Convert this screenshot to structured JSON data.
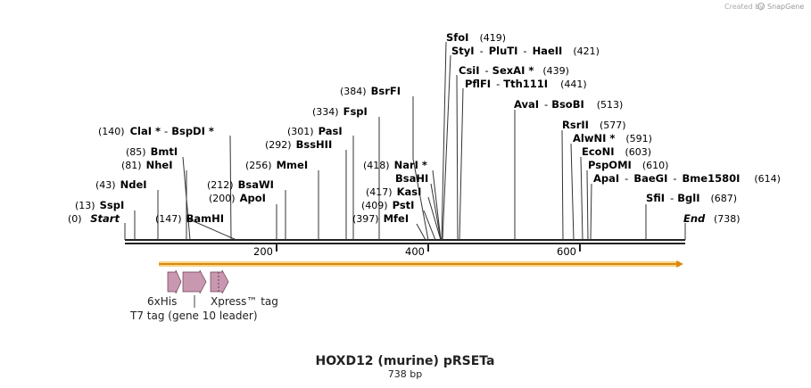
{
  "brand": {
    "created_by": "Created by",
    "app_name": "SnapGene"
  },
  "map": {
    "title": "HOXD12 (murine) pRSETa",
    "length_label": "738 bp",
    "length_bp": 738,
    "start_label": "Start",
    "end_label": "End",
    "start_pos": "(0)",
    "end_pos": "(738)",
    "ticks": [
      {
        "bp": 200,
        "label": "200"
      },
      {
        "bp": 400,
        "label": "400"
      },
      {
        "bp": 600,
        "label": "600"
      }
    ],
    "orf_color": "#f0b030",
    "feature_color": "#c898b0"
  },
  "sites": [
    {
      "name": "SspI",
      "pos": "(13)",
      "bp": 13,
      "side": "left"
    },
    {
      "name": "NdeI",
      "pos": "(43)",
      "bp": 43,
      "side": "left"
    },
    {
      "name": "NheI",
      "pos": "(81)",
      "bp": 81,
      "side": "left"
    },
    {
      "name": "BmtI",
      "pos": "(85)",
      "bp": 85,
      "side": "left"
    },
    {
      "name": "ClaI *",
      "name2": "BspDI *",
      "pos": "(140)",
      "bp": 140,
      "side": "left"
    },
    {
      "name": "BamHI",
      "pos": "(147)",
      "bp": 147,
      "side": "right"
    },
    {
      "name": "ApoI",
      "pos": "(200)",
      "bp": 200,
      "side": "left"
    },
    {
      "name": "BsaWI",
      "pos": "(212)",
      "bp": 212,
      "side": "left"
    },
    {
      "name": "MmeI",
      "pos": "(256)",
      "bp": 256,
      "side": "left"
    },
    {
      "name": "BssHII",
      "pos": "(292)",
      "bp": 292,
      "side": "left"
    },
    {
      "name": "PasI",
      "pos": "(301)",
      "bp": 301,
      "side": "left"
    },
    {
      "name": "FspI",
      "pos": "(334)",
      "bp": 334,
      "side": "left"
    },
    {
      "name": "BsrFI",
      "pos": "(384)",
      "bp": 384,
      "side": "left"
    },
    {
      "name": "MfeI",
      "pos": "(397)",
      "bp": 397,
      "side": "left"
    },
    {
      "name": "PstI",
      "pos": "(409)",
      "bp": 409,
      "side": "left"
    },
    {
      "name": "KasI",
      "pos": "(417)",
      "bp": 417,
      "side": "left"
    },
    {
      "name": "NarI *",
      "pos": "(418)",
      "bp": 418,
      "side": "left"
    },
    {
      "name": "BsaHI",
      "pos": "",
      "bp": 418,
      "side": "left"
    },
    {
      "name": "SfoI",
      "pos": "(419)",
      "bp": 419,
      "side": "right"
    },
    {
      "name": "StyI",
      "name2": "PluTI",
      "name3": "HaeII",
      "pos": "(421)",
      "bp": 421,
      "side": "right"
    },
    {
      "name": "CsiI",
      "name2": "SexAI *",
      "pos": "(439)",
      "bp": 439,
      "side": "right"
    },
    {
      "name": "PflFI",
      "name2": "Tth111I",
      "pos": "(441)",
      "bp": 441,
      "side": "right"
    },
    {
      "name": "AvaI",
      "name2": "BsoBI",
      "pos": "(513)",
      "bp": 513,
      "side": "right"
    },
    {
      "name": "RsrII",
      "pos": "(577)",
      "bp": 577,
      "side": "right"
    },
    {
      "name": "AlwNI *",
      "pos": "(591)",
      "bp": 591,
      "side": "right"
    },
    {
      "name": "EcoNI",
      "pos": "(603)",
      "bp": 603,
      "side": "right"
    },
    {
      "name": "PspOMI",
      "pos": "(610)",
      "bp": 610,
      "side": "right"
    },
    {
      "name": "ApaI",
      "name2": "BaeGI",
      "name3": "Bme1580I",
      "pos": "(614)",
      "bp": 614,
      "side": "right"
    },
    {
      "name": "SfiI",
      "name2": "BglI",
      "pos": "(687)",
      "bp": 687,
      "side": "right"
    }
  ],
  "features": [
    {
      "name": "6xHis",
      "start": 58,
      "end": 75
    },
    {
      "name": "T7 tag (gene 10 leader)",
      "start": 76,
      "end": 108
    },
    {
      "name": "Xpress™ tag",
      "start": 114,
      "end": 138
    }
  ]
}
